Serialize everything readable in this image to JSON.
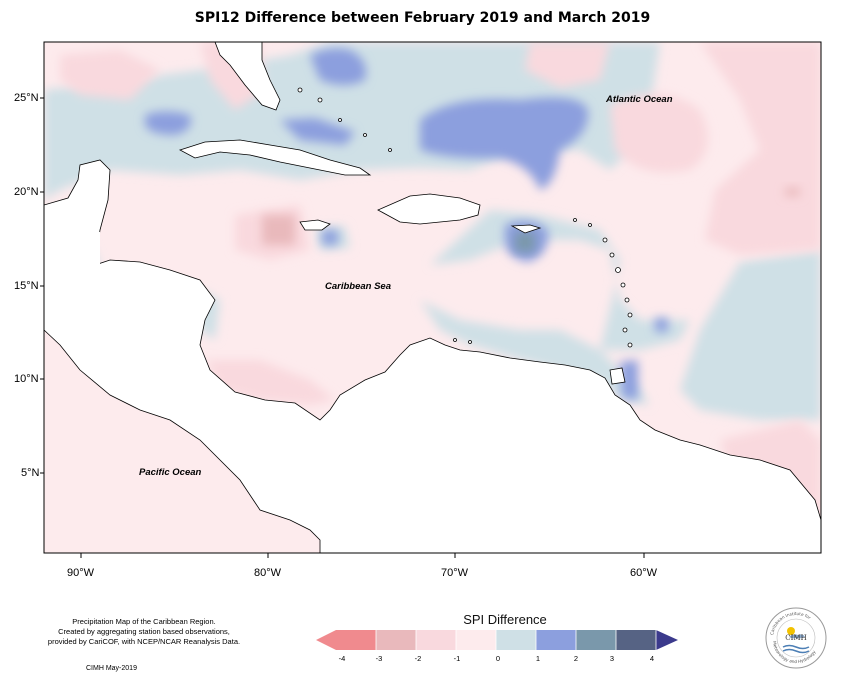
{
  "title": "SPI12 Difference between February 2019 and March 2019",
  "axes": {
    "latitude_labels": [
      "25°N",
      "20°N",
      "15°N",
      "10°N",
      "5°N"
    ],
    "longitude_labels": [
      "90°W",
      "80°W",
      "70°W",
      "60°W"
    ]
  },
  "map_labels": {
    "atlantic": "Atlantic Ocean",
    "caribbean": "Caribbean Sea",
    "pacific": "Pacific Ocean"
  },
  "legend": {
    "title": "SPI Difference",
    "ticks": [
      "-4",
      "-3",
      "-2",
      "-1",
      "0",
      "1",
      "2",
      "3",
      "4"
    ],
    "colors": [
      "#f08a8e",
      "#e9b9bc",
      "#f9d9de",
      "#fdebed",
      "#cfe0e6",
      "#8c9fde",
      "#7a98ab",
      "#566384",
      "#3b3a8c"
    ]
  },
  "credits": {
    "line1": "Precipitation Map of the Caribbean Region.",
    "line2": "Created by aggregating station based observations,",
    "line3": "provided by CariCOF, with NCEP/NCAR Reanalysis Data.",
    "date": "CIMH May-2019"
  },
  "logo": {
    "text": "CIMH",
    "arc_top": "Caribbean Institute for",
    "arc_bottom": "Meteorology and Hydrology"
  },
  "colors": {
    "land": "#ffffff",
    "coast": "#000000",
    "background_zero": "#fdebed"
  }
}
